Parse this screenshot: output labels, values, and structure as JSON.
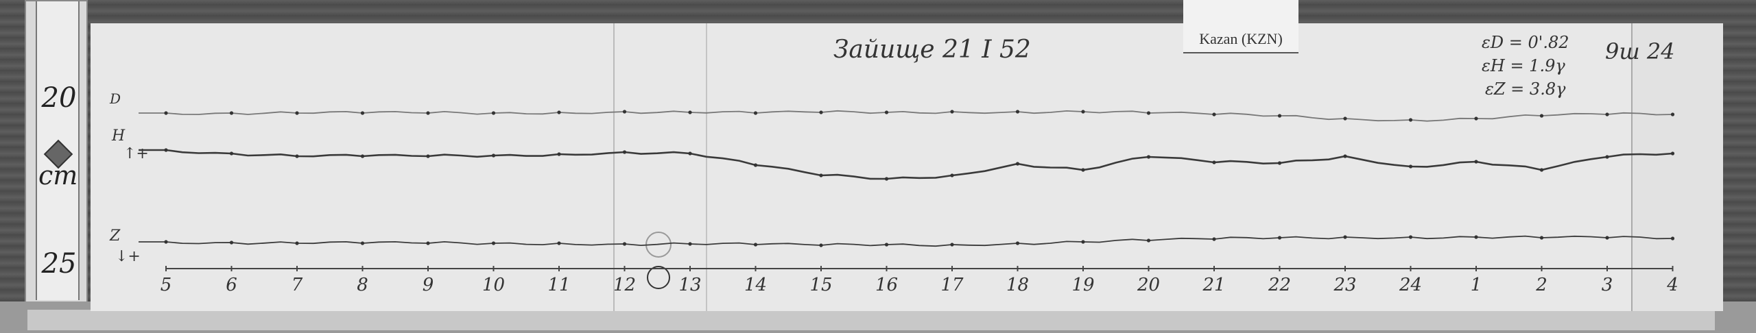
{
  "ruler": {
    "top_number": "20",
    "bottom_number": "25",
    "unit": "cm"
  },
  "station_label": "Kazan (KZN)",
  "header_note": "Зайище 21 I 52",
  "scale_values": {
    "d": "εD = 0'.82",
    "h": "εH = 1.9γ",
    "z": "εZ = 3.8γ"
  },
  "right_note": "9ш 24",
  "trace_labels": {
    "d": "D",
    "h": "H",
    "h_dir": "↑+",
    "z": "Z",
    "z_dir": "↓+"
  },
  "chart_data": {
    "type": "line",
    "title": "",
    "xlabel": "",
    "ylabel": "",
    "grid": false,
    "categories": [
      "5",
      "6",
      "7",
      "8",
      "9",
      "10",
      "11",
      "12",
      "13",
      "14",
      "15",
      "16",
      "17",
      "18",
      "19",
      "20",
      "21",
      "22",
      "23",
      "24",
      "1",
      "2",
      "3",
      "4"
    ],
    "series": [
      {
        "name": "D",
        "values": [
          60,
          60,
          60,
          60,
          60,
          60,
          61,
          62,
          61,
          60,
          61,
          61,
          62,
          62,
          62,
          60,
          58,
          56,
          52,
          50,
          52,
          56,
          58,
          58
        ]
      },
      {
        "name": "H",
        "values": [
          42,
          37,
          33,
          33,
          33,
          34,
          36,
          39,
          37,
          20,
          5,
          0,
          5,
          22,
          13,
          32,
          24,
          23,
          33,
          18,
          25,
          13,
          32,
          37
        ]
      },
      {
        "name": "Z",
        "values": [
          -58,
          -59,
          -60,
          -60,
          -60,
          -60,
          -60,
          -61,
          -61,
          -62,
          -63,
          -62,
          -62,
          -60,
          -58,
          -56,
          -54,
          -52,
          -51,
          -51,
          -51,
          -52,
          -52,
          -53
        ]
      }
    ],
    "colors": {
      "trace": "#3a3a3a",
      "paper": "#e8e8e8"
    }
  }
}
